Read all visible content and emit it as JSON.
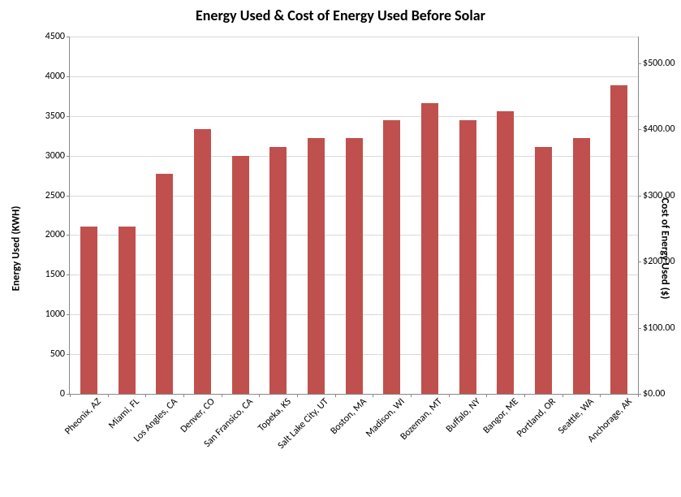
{
  "chart": {
    "type": "bar",
    "title": "Energy Used & Cost of Energy Used Before Solar",
    "title_fontsize": 18,
    "title_fontweight": "bold",
    "background_color": "#ffffff",
    "grid_color": "#d9d9d9",
    "axis_line_color": "#888888",
    "bar_color": "#c0504d",
    "bar_width_ratio": 0.45,
    "tick_fontsize": 12,
    "axis_label_fontsize": 13,
    "categories": [
      "Pheonix, AZ",
      "Miami, FL",
      "Los Angles, CA",
      "Denver, CO",
      "San Fransico, CA",
      "Topeka, KS",
      "Salt Lake City, UT",
      "Boston, MA",
      "Madison, WI",
      "Bozeman, MT",
      "Buffalo, NY",
      "Bangor, ME",
      "Portland, OR",
      "Seattle, WA",
      "Anchorage, AK"
    ],
    "values": [
      2110,
      2110,
      2775,
      3335,
      3000,
      3110,
      3225,
      3225,
      3445,
      3665,
      3445,
      3555,
      3110,
      3225,
      3890
    ],
    "y_left": {
      "label": "Energy Used (KWH)",
      "min": 0,
      "max": 4500,
      "tick_step": 500,
      "ticks": [
        "0",
        "500",
        "1000",
        "1500",
        "2000",
        "2500",
        "3000",
        "3500",
        "4000",
        "4500"
      ]
    },
    "y_right": {
      "label": "Cost of Energy Used ($)",
      "min": 0,
      "max": 540,
      "tick_step": 100,
      "ticks": [
        "$0.00",
        "$100.00",
        "$200.00",
        "$300.00",
        "$400.00",
        "$500.00"
      ]
    }
  }
}
